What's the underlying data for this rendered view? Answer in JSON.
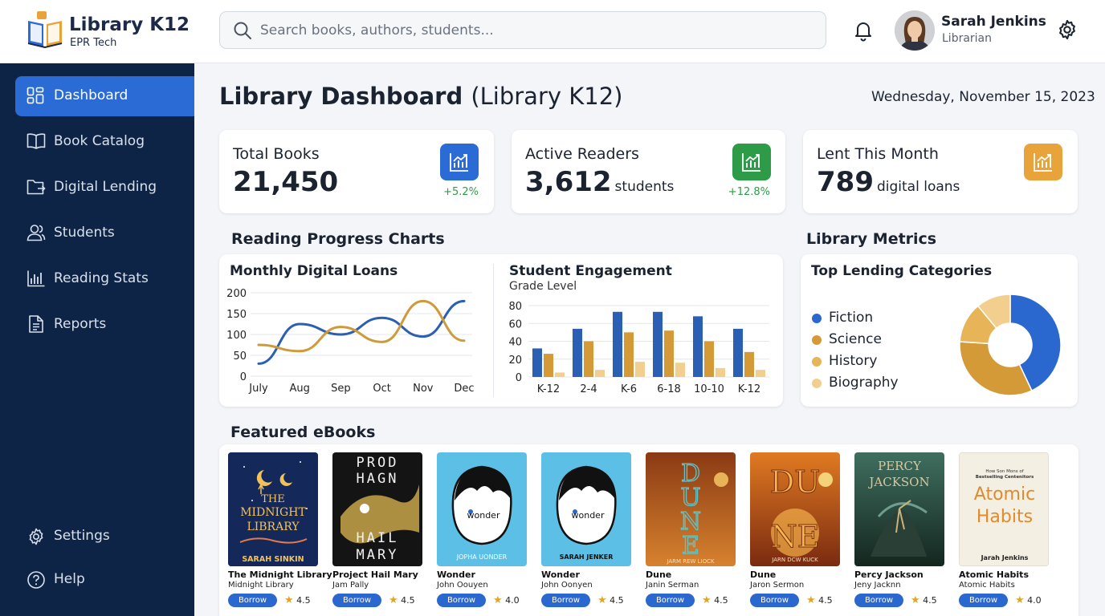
{
  "app": {
    "name": "Library K12",
    "subtitle": "EPR Tech"
  },
  "search": {
    "placeholder": "Search books, authors, students..."
  },
  "user": {
    "name": "Sarah Jenkins",
    "role": "Librarian"
  },
  "sidebar": {
    "items": [
      {
        "label": "Dashboard",
        "icon": "grid-icon",
        "active": true
      },
      {
        "label": "Book Catalog",
        "icon": "book-open-icon"
      },
      {
        "label": "Digital Lending",
        "icon": "folder-icon"
      },
      {
        "label": "Students",
        "icon": "users-icon"
      },
      {
        "label": "Reading Stats",
        "icon": "bar-chart-icon"
      },
      {
        "label": "Reports",
        "icon": "document-icon"
      }
    ],
    "bottom": [
      {
        "label": "Settings",
        "icon": "gear-icon"
      },
      {
        "label": "Help",
        "icon": "help-icon"
      }
    ]
  },
  "page": {
    "title": "Library Dashboard",
    "title_suffix": "(Library K12)",
    "date": "Wednesday, November 15, 2023"
  },
  "stats": [
    {
      "label": "Total Books",
      "value": "21,450",
      "unit": "",
      "change": "+5.2%",
      "color": "#2b6bd6"
    },
    {
      "label": "Active Readers",
      "value": "3,612",
      "unit": "students",
      "change": "+12.8%",
      "color": "#2e9b48"
    },
    {
      "label": "Lent This Month",
      "value": "789",
      "unit": "digital loans",
      "change": "",
      "color": "#e8a43a"
    }
  ],
  "sections": {
    "reading_progress": "Reading Progress Charts",
    "library_metrics": "Library Metrics",
    "featured": "Featured eBooks"
  },
  "colors": {
    "blue": "#2a5fb4",
    "gold": "#cf9a3a",
    "amber": "#e3b04a",
    "light": "#f2cf8f"
  },
  "chart_data": [
    {
      "type": "line",
      "title": "Monthly Digital Loans",
      "x": [
        "July",
        "Aug",
        "Sep",
        "Oct",
        "Nov",
        "Dec"
      ],
      "ylim": [
        0,
        200
      ],
      "yticks": [
        0,
        50,
        100,
        150,
        200
      ],
      "grid": true,
      "series": [
        {
          "values": [
            30,
            125,
            100,
            140,
            95,
            180
          ],
          "color": "#2a5fb4"
        },
        {
          "values": [
            75,
            60,
            118,
            82,
            180,
            85
          ],
          "color": "#cf9a3a"
        }
      ]
    },
    {
      "type": "bar",
      "title": "Student Engagement",
      "subtitle": "Grade Level",
      "categories": [
        "K-12",
        "2-4",
        "K-6",
        "6-18",
        "10-10",
        "K-12"
      ],
      "ylim": [
        0,
        80
      ],
      "yticks": [
        0,
        20,
        40,
        60,
        80
      ],
      "grid": true,
      "series": [
        {
          "values": [
            32,
            54,
            73,
            73,
            68,
            54
          ],
          "color": "#2a5fb4"
        },
        {
          "values": [
            26,
            40,
            50,
            52,
            40,
            28
          ],
          "color": "#d39a37"
        },
        {
          "values": [
            5,
            8,
            17,
            16,
            10,
            8
          ],
          "color": "#f2cf8f"
        }
      ]
    },
    {
      "type": "pie",
      "title": "Top Lending Categories",
      "legend": "left",
      "slices": [
        {
          "label": "Fiction",
          "value": 43,
          "color": "#2a67cf"
        },
        {
          "label": "Science",
          "value": 33,
          "color": "#d39a37"
        },
        {
          "label": "History",
          "value": 13,
          "color": "#e8b458"
        },
        {
          "label": "Biography",
          "value": 11,
          "color": "#f2cf8f"
        }
      ]
    }
  ],
  "books": [
    {
      "title": "The Midnight Library",
      "author": "Midnight Library",
      "rating": "4.5",
      "borrow": "Borrow",
      "cover": {
        "bg": "#162a57",
        "fg": "#f2c25a",
        "text": "THE MIDNIGHT LIBRARY",
        "by": "SARAH SINKIN"
      }
    },
    {
      "title": "Project Hail Mary",
      "author": "Jam Pally",
      "rating": "4.5",
      "borrow": "Borrow",
      "cover": {
        "bg": "#151515",
        "fg": "#f2f2f2",
        "text": "PROD HAGN",
        "text2": "HAIL MARY"
      }
    },
    {
      "title": "Wonder",
      "author": "John Oouyen",
      "rating": "4.0",
      "borrow": "Borrow",
      "cover": {
        "bg": "#5bbfe6",
        "fg": "#111",
        "word": "wonder",
        "by": "JOPHA UONDER"
      }
    },
    {
      "title": "Wonder",
      "author": "John Oonyen",
      "rating": "4.5",
      "borrow": "Borrow",
      "cover": {
        "bg": "#5bbfe6",
        "fg": "#111",
        "word": "wonder",
        "by": "SARAH JENKER"
      }
    },
    {
      "title": "Dune",
      "author": "Janin Serman",
      "rating": "4.5",
      "borrow": "Borrow",
      "cover": {
        "bg": "#b0521b",
        "fg": "#5fc4c8",
        "text": "DUNE",
        "by": "JARM REW LIOCK"
      }
    },
    {
      "title": "Dune",
      "author": "Jaron Sermon",
      "rating": "4.5",
      "borrow": "Borrow",
      "cover": {
        "bg": "#c45a1c",
        "fg": "#f0b64a",
        "text": "DUNE",
        "by": "JARN DCW KUCK"
      }
    },
    {
      "title": "Percy Jackson",
      "author": "Jeny Jacknn",
      "rating": "4.5",
      "borrow": "Borrow",
      "cover": {
        "bg": "#1f3d33",
        "fg": "#d9c79b",
        "text": "PERCY JACKSON"
      }
    },
    {
      "title": "Atomic Habits",
      "author": "Atomic Habits",
      "rating": "4.0",
      "borrow": "Borrow",
      "cover": {
        "bg": "#f4efe3",
        "fg": "#e08a2c",
        "text": "Atomic Habits",
        "by": "Jarah Jenkins",
        "top": "How Son Mons of Bestselling Centenitors"
      }
    }
  ]
}
